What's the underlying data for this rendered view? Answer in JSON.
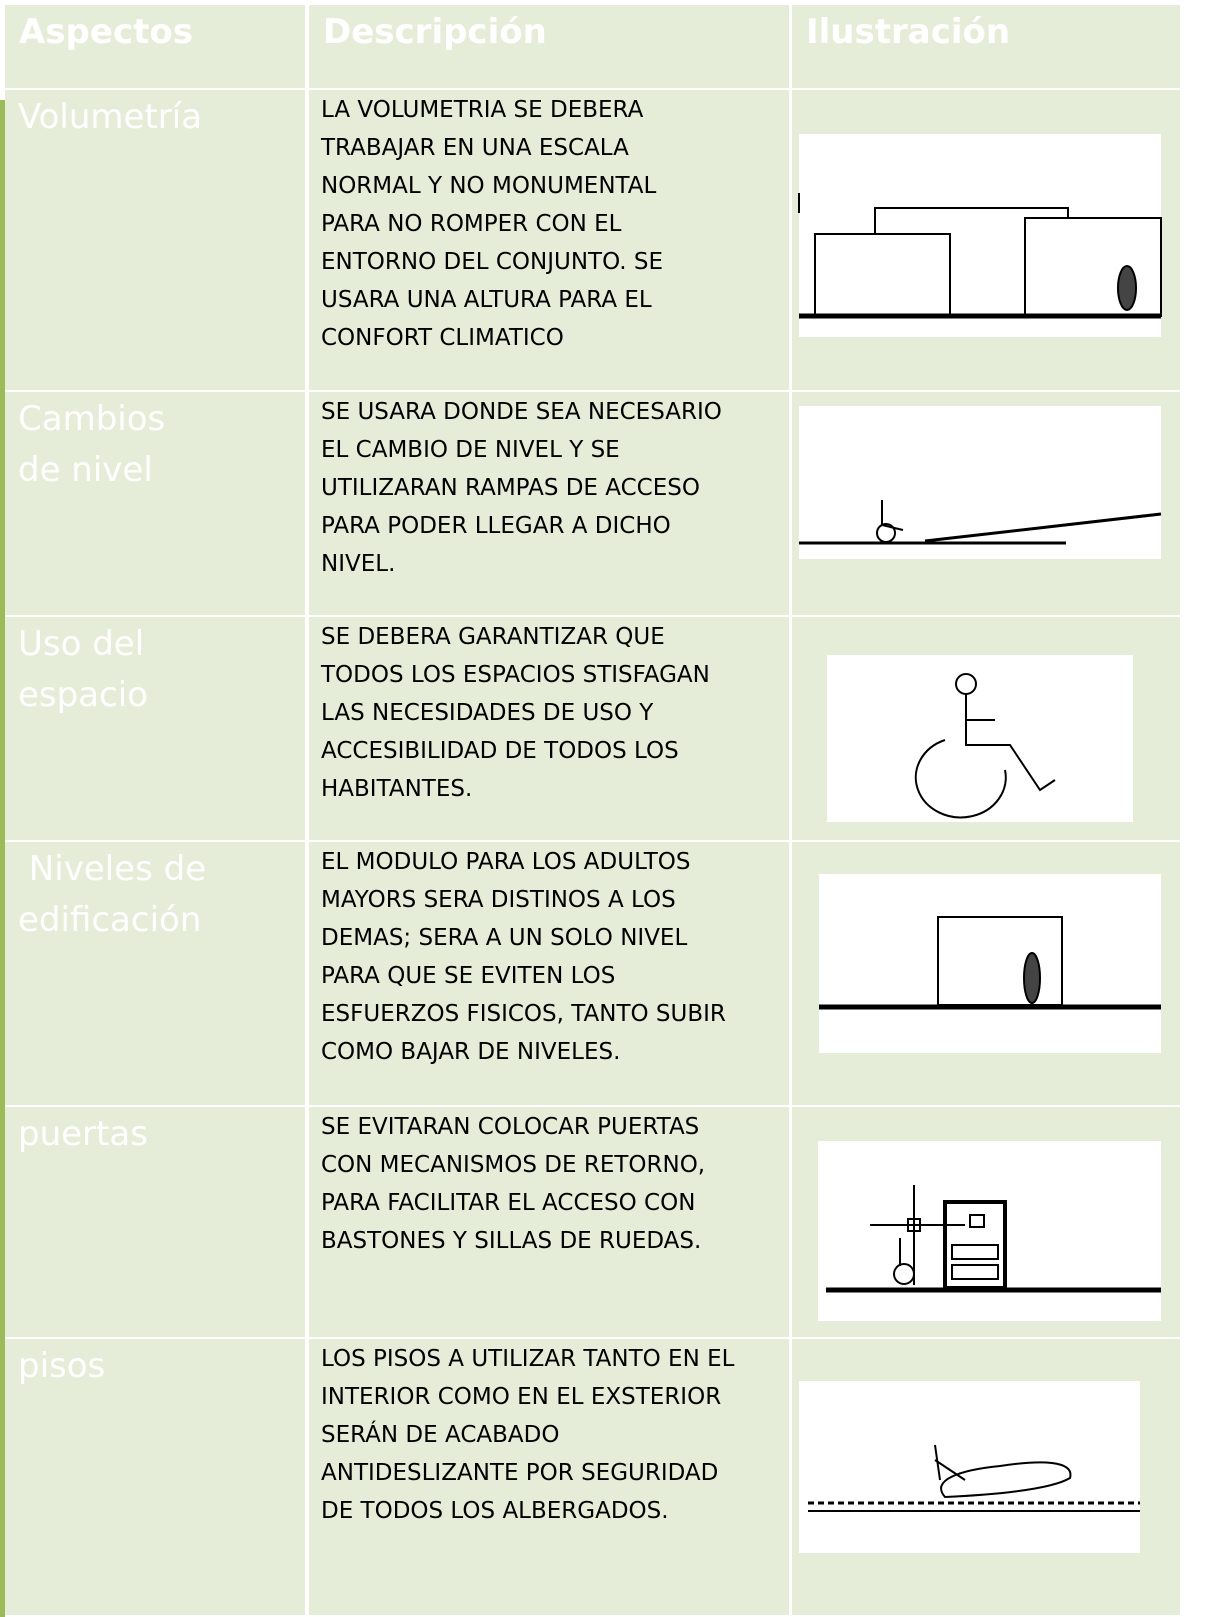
{
  "table": {
    "header": [
      "Aspectos",
      "Descripción",
      "Ilustración"
    ],
    "rows": [
      {
        "aspect": [
          "Volumetría"
        ],
        "description": [
          "LA VOLUMETRIA SE DEBERA",
          "TRABAJAR EN UNA ESCALA",
          "NORMAL Y NO MONUMENTAL",
          "PARA NO ROMPER CON EL",
          "ENTORNO DEL CONJUNTO. SE",
          "USARA UNA ALTURA PARA EL",
          "CONFORT CLIMATICO"
        ]
      },
      {
        "aspect": [
          "Cambios",
          "de nivel"
        ],
        "description": [
          "SE USARA DONDE SEA NECESARIO",
          "EL CAMBIO DE NIVEL Y SE",
          "UTILIZARAN RAMPAS DE ACCESO",
          "PARA PODER LLEGAR A DICHO",
          "NIVEL."
        ]
      },
      {
        "aspect": [
          "Uso del",
          "espacio"
        ],
        "description": [
          "SE DEBERA GARANTIZAR QUE",
          "TODOS LOS ESPACIOS STISFAGAN",
          "LAS NECESIDADES DE USO Y",
          "ACCESIBILIDAD DE TODOS LOS",
          "HABITANTES."
        ]
      },
      {
        "aspect": [
          " Niveles de",
          "edificación"
        ],
        "description": [
          "EL MODULO PARA LOS ADULTOS",
          "MAYORS SERA DISTINOS A LOS",
          "DEMAS; SERA A UN SOLO NIVEL",
          "PARA QUE SE EVITEN LOS",
          "ESFUERZOS FISICOS, TANTO SUBIR",
          "COMO BAJAR DE NIVELES."
        ]
      },
      {
        "aspect": [
          "puertas"
        ],
        "description": [
          "SE EVITARAN COLOCAR PUERTAS",
          "CON MECANISMOS DE RETORNO,",
          "PARA FACILITAR EL ACCESO CON",
          "BASTONES Y SILLAS DE RUEDAS."
        ]
      },
      {
        "aspect": [
          "pisos"
        ],
        "description": [
          "LOS PISOS A UTILIZAR TANTO EN EL",
          "INTERIOR COMO EN EL EXSTERIOR",
          "SERÁN DE ACABADO",
          "ANTIDESLIZANTE POR SEGURIDAD",
          "DE TODOS LOS ALBERGADOS."
        ]
      }
    ]
  }
}
